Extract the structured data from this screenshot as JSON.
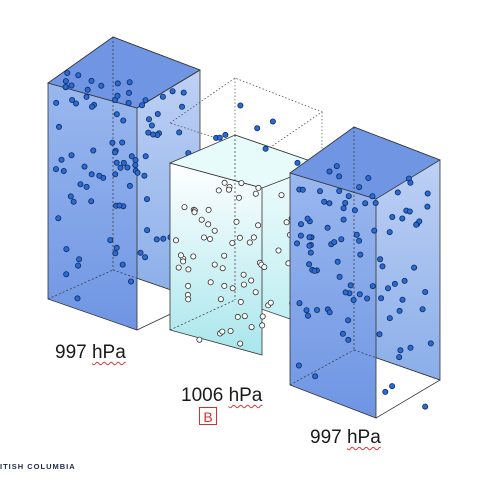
{
  "columns": [
    {
      "id": "left",
      "pressure_value": "997",
      "unit": "hPa",
      "fill": "blue"
    },
    {
      "id": "center",
      "pressure_value": "1006",
      "unit": "hPa",
      "fill": "light",
      "marker": "B"
    },
    {
      "id": "right",
      "pressure_value": "997",
      "unit": "hPa",
      "fill": "blue"
    }
  ],
  "footer": {
    "text": "ITISH COLUMBIA"
  },
  "colors": {
    "blue_top": "#3f6fd6",
    "blue_bottom": "#c7d8f7",
    "light_top": "#ffffff",
    "light_bottom": "#9de4ea",
    "marker_red": "#d9302a",
    "dot_blue": "#2a6bd1"
  }
}
